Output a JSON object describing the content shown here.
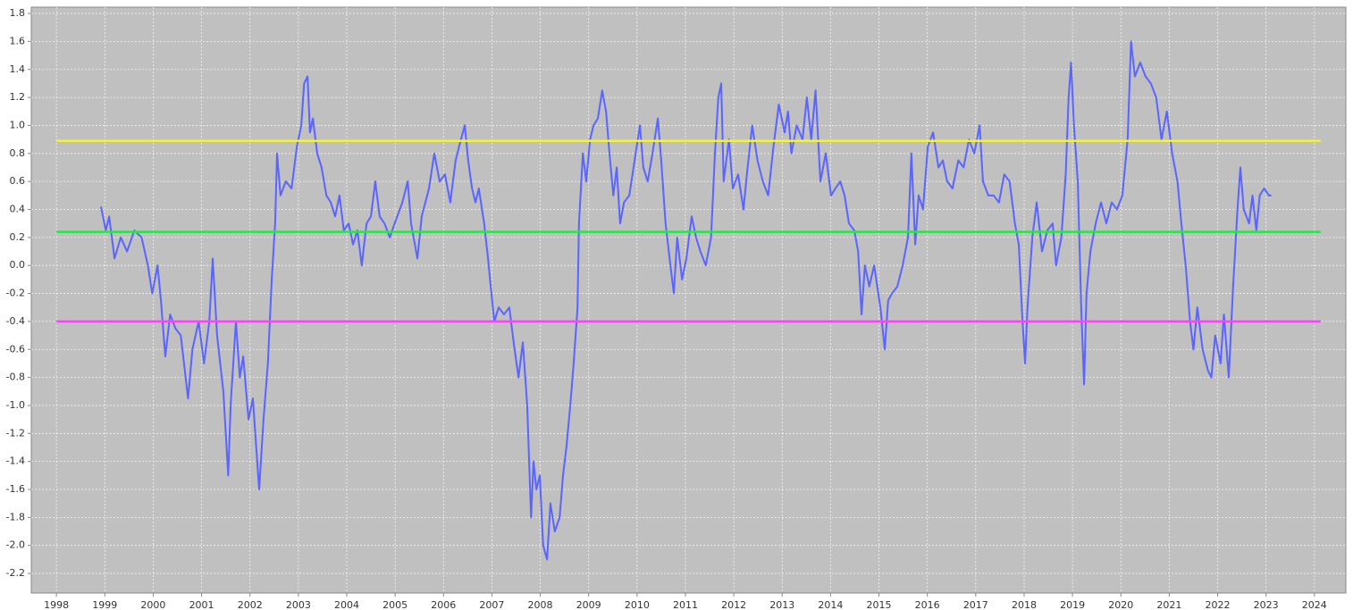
{
  "chart_data": {
    "type": "line",
    "xlim": [
      1997.48,
      2024.65
    ],
    "ylim": [
      -2.34,
      1.845
    ],
    "grid": true,
    "xticks": [
      1998,
      1999,
      2000,
      2001,
      2002,
      2003,
      2004,
      2005,
      2006,
      2007,
      2008,
      2009,
      2010,
      2011,
      2012,
      2013,
      2014,
      2015,
      2016,
      2017,
      2018,
      2019,
      2020,
      2021,
      2022,
      2023,
      2024
    ],
    "yticks": [
      -2.2,
      {
        "value": -2.0,
        "label": "-2.0"
      },
      -1.8,
      -1.6,
      -1.4,
      -1.2,
      {
        "value": -1.0,
        "label": "-1.0"
      },
      -0.8,
      -0.6,
      -0.4,
      -0.2,
      {
        "value": 0.0,
        "label": "0.0"
      },
      0.2,
      0.4,
      0.6,
      0.8,
      {
        "value": 1.0,
        "label": "1.0"
      },
      1.2,
      1.4,
      1.6,
      1.8
    ],
    "series": [
      {
        "color": "#5a64ff",
        "x": [
          1998.92,
          1999.02,
          1999.09,
          1999.2,
          1999.33,
          1999.46,
          1999.61,
          1999.76,
          1999.89,
          1999.98,
          2000.09,
          2000.16,
          2000.25,
          2000.35,
          2000.46,
          2000.57,
          2000.72,
          2000.81,
          2000.94,
          2001.05,
          2001.16,
          2001.23,
          2001.32,
          2001.45,
          2001.55,
          2001.6,
          2001.71,
          2001.79,
          2001.86,
          2001.97,
          2002.06,
          2002.19,
          2002.28,
          2002.37,
          2002.45,
          2002.52,
          2002.56,
          2002.63,
          2002.74,
          2002.86,
          2002.97,
          2003.06,
          2003.12,
          2003.19,
          2003.24,
          2003.3,
          2003.39,
          2003.48,
          2003.58,
          2003.67,
          2003.76,
          2003.85,
          2003.94,
          2004.04,
          2004.13,
          2004.22,
          2004.31,
          2004.41,
          2004.5,
          2004.59,
          2004.68,
          2004.78,
          2004.89,
          2004.99,
          2005.15,
          2005.26,
          2005.33,
          2005.46,
          2005.55,
          2005.7,
          2005.81,
          2005.92,
          2006.03,
          2006.14,
          2006.25,
          2006.36,
          2006.44,
          2006.51,
          2006.59,
          2006.66,
          2006.73,
          2006.84,
          2006.92,
          2006.99,
          2007.05,
          2007.14,
          2007.25,
          2007.36,
          2007.45,
          2007.55,
          2007.64,
          2007.73,
          2007.81,
          2007.86,
          2007.92,
          2007.99,
          2008.06,
          2008.14,
          2008.21,
          2008.3,
          2008.4,
          2008.47,
          2008.54,
          2008.62,
          2008.69,
          2008.77,
          2008.8,
          2008.88,
          2008.95,
          2009.03,
          2009.1,
          2009.19,
          2009.28,
          2009.36,
          2009.43,
          2009.51,
          2009.58,
          2009.65,
          2009.73,
          2009.84,
          2009.95,
          2010.06,
          2010.13,
          2010.22,
          2010.32,
          2010.43,
          2010.5,
          2010.59,
          2010.69,
          2010.76,
          2010.83,
          2010.93,
          2011.02,
          2011.13,
          2011.22,
          2011.31,
          2011.42,
          2011.53,
          2011.61,
          2011.68,
          2011.74,
          2011.79,
          2011.9,
          2011.98,
          2012.09,
          2012.2,
          2012.27,
          2012.38,
          2012.49,
          2012.6,
          2012.71,
          2012.82,
          2012.93,
          2013.05,
          2013.12,
          2013.19,
          2013.3,
          2013.42,
          2013.51,
          2013.6,
          2013.69,
          2013.79,
          2013.9,
          2014.01,
          2014.1,
          2014.2,
          2014.29,
          2014.38,
          2014.49,
          2014.57,
          2014.64,
          2014.71,
          2014.8,
          2014.9,
          2015.03,
          2015.12,
          2015.19,
          2015.27,
          2015.38,
          2015.49,
          2015.6,
          2015.67,
          2015.75,
          2015.82,
          2015.91,
          2016.01,
          2016.12,
          2016.23,
          2016.32,
          2016.41,
          2016.52,
          2016.64,
          2016.75,
          2016.86,
          2016.97,
          2017.08,
          2017.15,
          2017.26,
          2017.37,
          2017.48,
          2017.59,
          2017.7,
          2017.81,
          2017.89,
          2017.96,
          2018.02,
          2018.07,
          2018.17,
          2018.26,
          2018.37,
          2018.48,
          2018.59,
          2018.66,
          2018.77,
          2018.86,
          2018.92,
          2018.97,
          2019.03,
          2019.11,
          2019.18,
          2019.24,
          2019.29,
          2019.37,
          2019.48,
          2019.59,
          2019.7,
          2019.81,
          2019.92,
          2020.03,
          2020.14,
          2020.21,
          2020.29,
          2020.4,
          2020.51,
          2020.62,
          2020.73,
          2020.84,
          2020.95,
          2021.06,
          2021.17,
          2021.25,
          2021.34,
          2021.43,
          2021.5,
          2021.58,
          2021.69,
          2021.8,
          2021.87,
          2021.95,
          2022.06,
          2022.13,
          2022.23,
          2022.32,
          2022.41,
          2022.47,
          2022.54,
          2022.65,
          2022.72,
          2022.8,
          2022.87,
          2022.96,
          2023.06,
          2023.11
        ],
        "values": [
          0.42,
          0.25,
          0.35,
          0.05,
          0.2,
          0.1,
          0.25,
          0.2,
          0.0,
          -0.2,
          0.0,
          -0.25,
          -0.65,
          -0.35,
          -0.45,
          -0.5,
          -0.95,
          -0.6,
          -0.4,
          -0.7,
          -0.4,
          0.05,
          -0.5,
          -0.9,
          -1.5,
          -1.0,
          -0.4,
          -0.8,
          -0.65,
          -1.1,
          -0.95,
          -1.6,
          -1.1,
          -0.7,
          -0.1,
          0.3,
          0.8,
          0.5,
          0.6,
          0.55,
          0.85,
          1.0,
          1.3,
          1.35,
          0.95,
          1.05,
          0.8,
          0.7,
          0.5,
          0.45,
          0.35,
          0.5,
          0.25,
          0.3,
          0.15,
          0.25,
          0.0,
          0.3,
          0.35,
          0.6,
          0.35,
          0.3,
          0.2,
          0.3,
          0.45,
          0.6,
          0.3,
          0.05,
          0.35,
          0.55,
          0.8,
          0.6,
          0.65,
          0.45,
          0.75,
          0.9,
          1.0,
          0.75,
          0.55,
          0.45,
          0.55,
          0.3,
          0.05,
          -0.2,
          -0.4,
          -0.3,
          -0.35,
          -0.3,
          -0.55,
          -0.8,
          -0.55,
          -1.0,
          -1.8,
          -1.4,
          -1.6,
          -1.5,
          -2.0,
          -2.1,
          -1.7,
          -1.9,
          -1.8,
          -1.5,
          -1.3,
          -1.0,
          -0.7,
          -0.3,
          0.3,
          0.8,
          0.6,
          0.9,
          1.0,
          1.05,
          1.25,
          1.1,
          0.8,
          0.5,
          0.7,
          0.3,
          0.45,
          0.5,
          0.75,
          1.0,
          0.7,
          0.6,
          0.8,
          1.05,
          0.75,
          0.3,
          0.0,
          -0.2,
          0.2,
          -0.1,
          0.05,
          0.35,
          0.2,
          0.1,
          0.0,
          0.2,
          0.8,
          1.2,
          1.3,
          0.6,
          0.9,
          0.55,
          0.65,
          0.4,
          0.65,
          1.0,
          0.75,
          0.6,
          0.5,
          0.85,
          1.15,
          0.95,
          1.1,
          0.8,
          1.0,
          0.9,
          1.2,
          0.9,
          1.25,
          0.6,
          0.8,
          0.5,
          0.55,
          0.6,
          0.5,
          0.3,
          0.25,
          0.1,
          -0.35,
          0.0,
          -0.15,
          0.0,
          -0.3,
          -0.6,
          -0.25,
          -0.2,
          -0.15,
          0.0,
          0.2,
          0.8,
          0.15,
          0.5,
          0.4,
          0.85,
          0.95,
          0.7,
          0.75,
          0.6,
          0.55,
          0.75,
          0.7,
          0.9,
          0.8,
          1.0,
          0.6,
          0.5,
          0.5,
          0.45,
          0.65,
          0.6,
          0.3,
          0.15,
          -0.35,
          -0.7,
          -0.3,
          0.2,
          0.45,
          0.1,
          0.25,
          0.3,
          0.0,
          0.2,
          0.65,
          1.2,
          1.45,
          1.0,
          0.6,
          -0.3,
          -0.85,
          -0.2,
          0.1,
          0.3,
          0.45,
          0.3,
          0.45,
          0.4,
          0.5,
          0.9,
          1.6,
          1.35,
          1.45,
          1.35,
          1.3,
          1.2,
          0.9,
          1.1,
          0.8,
          0.6,
          0.3,
          0.0,
          -0.4,
          -0.6,
          -0.3,
          -0.6,
          -0.75,
          -0.8,
          -0.5,
          -0.7,
          -0.35,
          -0.8,
          -0.15,
          0.4,
          0.7,
          0.4,
          0.3,
          0.5,
          0.25,
          0.5,
          0.55,
          0.5,
          0.5
        ]
      },
      {
        "color": "#f2f23c",
        "x": [
          1998,
          2024.13
        ],
        "values": [
          0.89,
          0.89
        ]
      },
      {
        "color": "#22e844",
        "x": [
          1998,
          2024.13
        ],
        "values": [
          0.24,
          0.24
        ]
      },
      {
        "color": "#ff40ff",
        "x": [
          1998,
          2024.13
        ],
        "values": [
          -0.4,
          -0.4
        ]
      }
    ]
  }
}
